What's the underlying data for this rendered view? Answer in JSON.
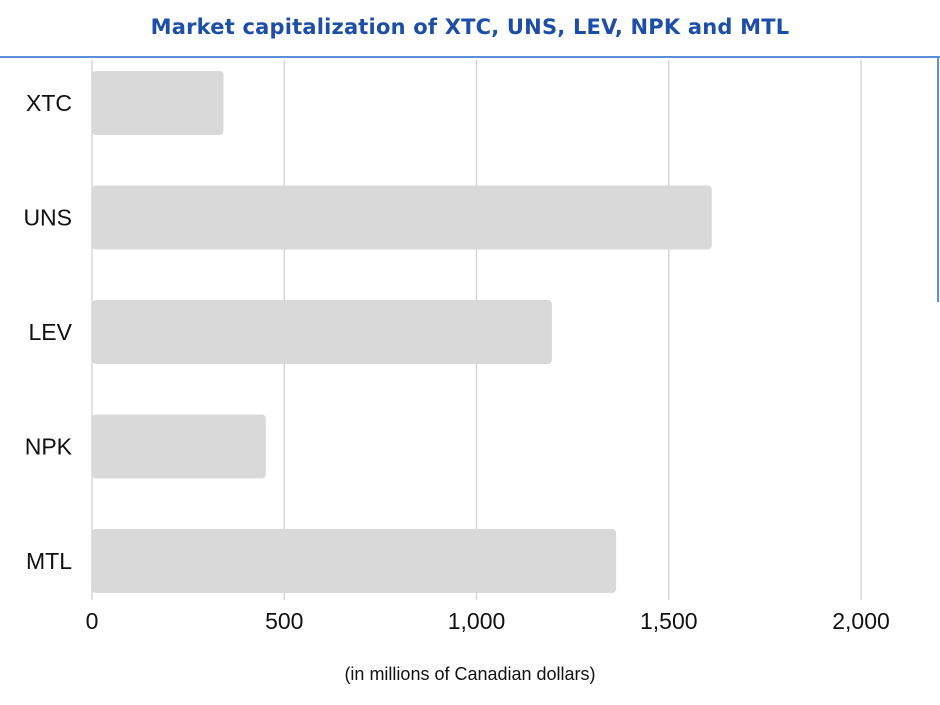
{
  "chart_data": {
    "type": "bar",
    "orientation": "horizontal",
    "title": "Market capitalization of  XTC, UNS, LEV, NPK and MTL",
    "xlabel": "(in millions of Canadian dollars)",
    "ylabel": "",
    "categories": [
      "XTC",
      "UNS",
      "LEV",
      "NPK",
      "MTL"
    ],
    "values": [
      342,
      1612,
      1196,
      452,
      1363
    ],
    "xlim": [
      0,
      2000
    ],
    "xticks": [
      0,
      500,
      1000,
      1500,
      2000
    ],
    "xtick_labels": [
      "0",
      "500",
      "1,000",
      "1,500",
      "2,000"
    ],
    "grid": "vertical",
    "legend": "none",
    "colors": {
      "bar": "#d9d9d9",
      "grid": "#d7d7d7",
      "title": "#1e4fa8",
      "accent_rule": "#5b8fd6"
    }
  }
}
